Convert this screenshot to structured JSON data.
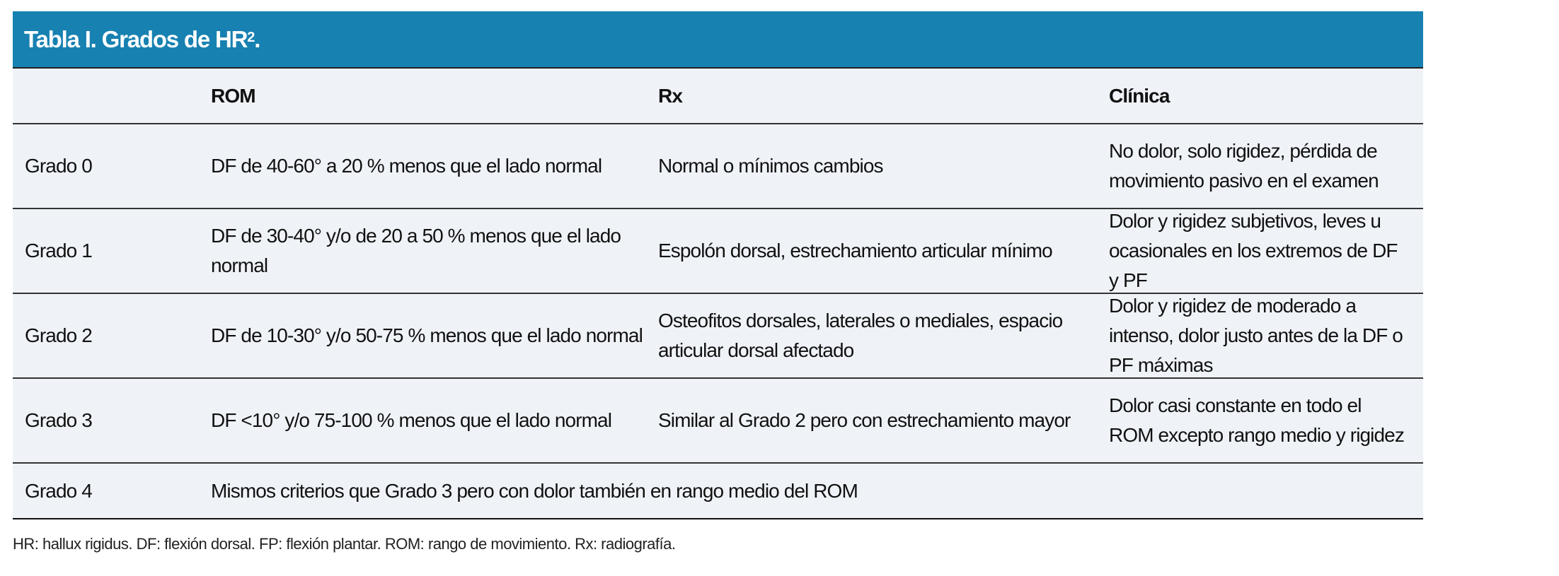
{
  "title": {
    "text": "Tabla I. Grados de HR",
    "sup": "2",
    "end": "."
  },
  "columns": [
    "",
    "ROM",
    "Rx",
    "Clínica"
  ],
  "rows": [
    {
      "grade": "Grado 0",
      "rom": "DF de 40-60° a 20 % menos que el lado normal",
      "rx": "Normal o mínimos cambios",
      "clinica": "No dolor, solo rigidez, pérdida de movimiento pasivo en el examen"
    },
    {
      "grade": "Grado 1",
      "rom": "DF de 30-40° y/o de 20 a 50 % menos que el lado normal",
      "rx": "Espolón dorsal, estrechamiento articular mínimo",
      "clinica": "Dolor y rigidez subjetivos, leves u ocasionales en los extremos de DF y PF"
    },
    {
      "grade": "Grado 2",
      "rom": "DF de 10-30° y/o 50-75 % menos que el lado normal",
      "rx": "Osteofitos dorsales, laterales o mediales, espacio articular dorsal afectado",
      "clinica": "Dolor y rigidez de moderado a intenso, dolor justo antes de la DF o PF máximas"
    },
    {
      "grade": "Grado 3",
      "rom": "DF <10° y/o 75-100 % menos que el lado normal",
      "rx": "Similar al Grado 2 pero con estrechamiento mayor",
      "clinica": "Dolor casi constante en todo el ROM excepto rango medio y rigidez"
    }
  ],
  "last_row": {
    "grade": "Grado 4",
    "text": "Mismos criterios que Grado 3 pero con dolor también en rango medio del ROM"
  },
  "footnote": "HR: hallux rigidus. DF: flexión dorsal. FP: flexión plantar. ROM: rango de movimiento. Rx: radiografía.",
  "colors": {
    "header": "#1781b1",
    "row_bg": "#eff3f8"
  }
}
